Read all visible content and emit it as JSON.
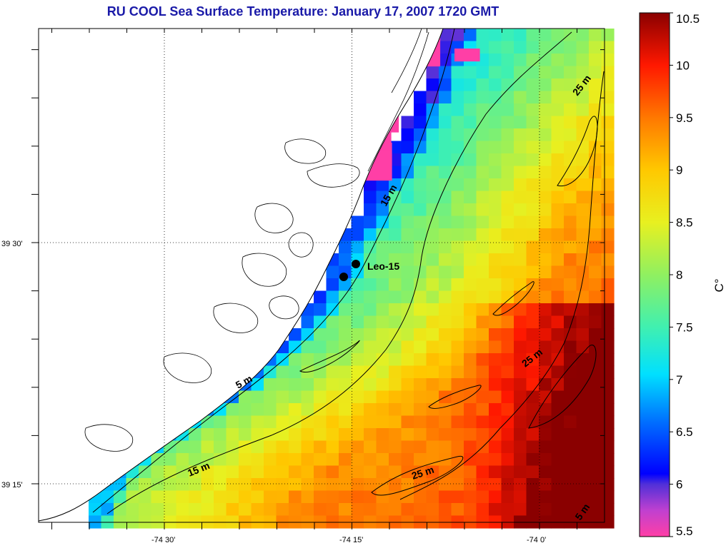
{
  "title": "RU COOL  Sea Surface Temperature:  January 17, 2007 1720 GMT",
  "lon_ticks": [
    {
      "label": "-74 30'",
      "lon": -74.5
    },
    {
      "label": "-74 15'",
      "lon": -74.25
    },
    {
      "label": "-74 0'",
      "lon": -74.0
    }
  ],
  "lat_ticks": [
    {
      "label": "39 30'",
      "lat": 39.5
    },
    {
      "label": "39 15'",
      "lat": 39.25
    }
  ],
  "station": {
    "name": "Leo-15"
  },
  "depth_labels": [
    "25 m",
    "15 m",
    "5 m",
    "25 m",
    "15 m",
    "25 m",
    "5 m"
  ],
  "colorbar": {
    "unit": "C°",
    "min": 5.5,
    "max": 10.5,
    "ticks": [
      "5.5",
      "6",
      "6.5",
      "7",
      "7.5",
      "8",
      "8.5",
      "9",
      "9.5",
      "10",
      "10.5"
    ]
  },
  "colors": {
    "title": "#1a1aa8",
    "land": "#ffffff",
    "coast": "#000000"
  }
}
